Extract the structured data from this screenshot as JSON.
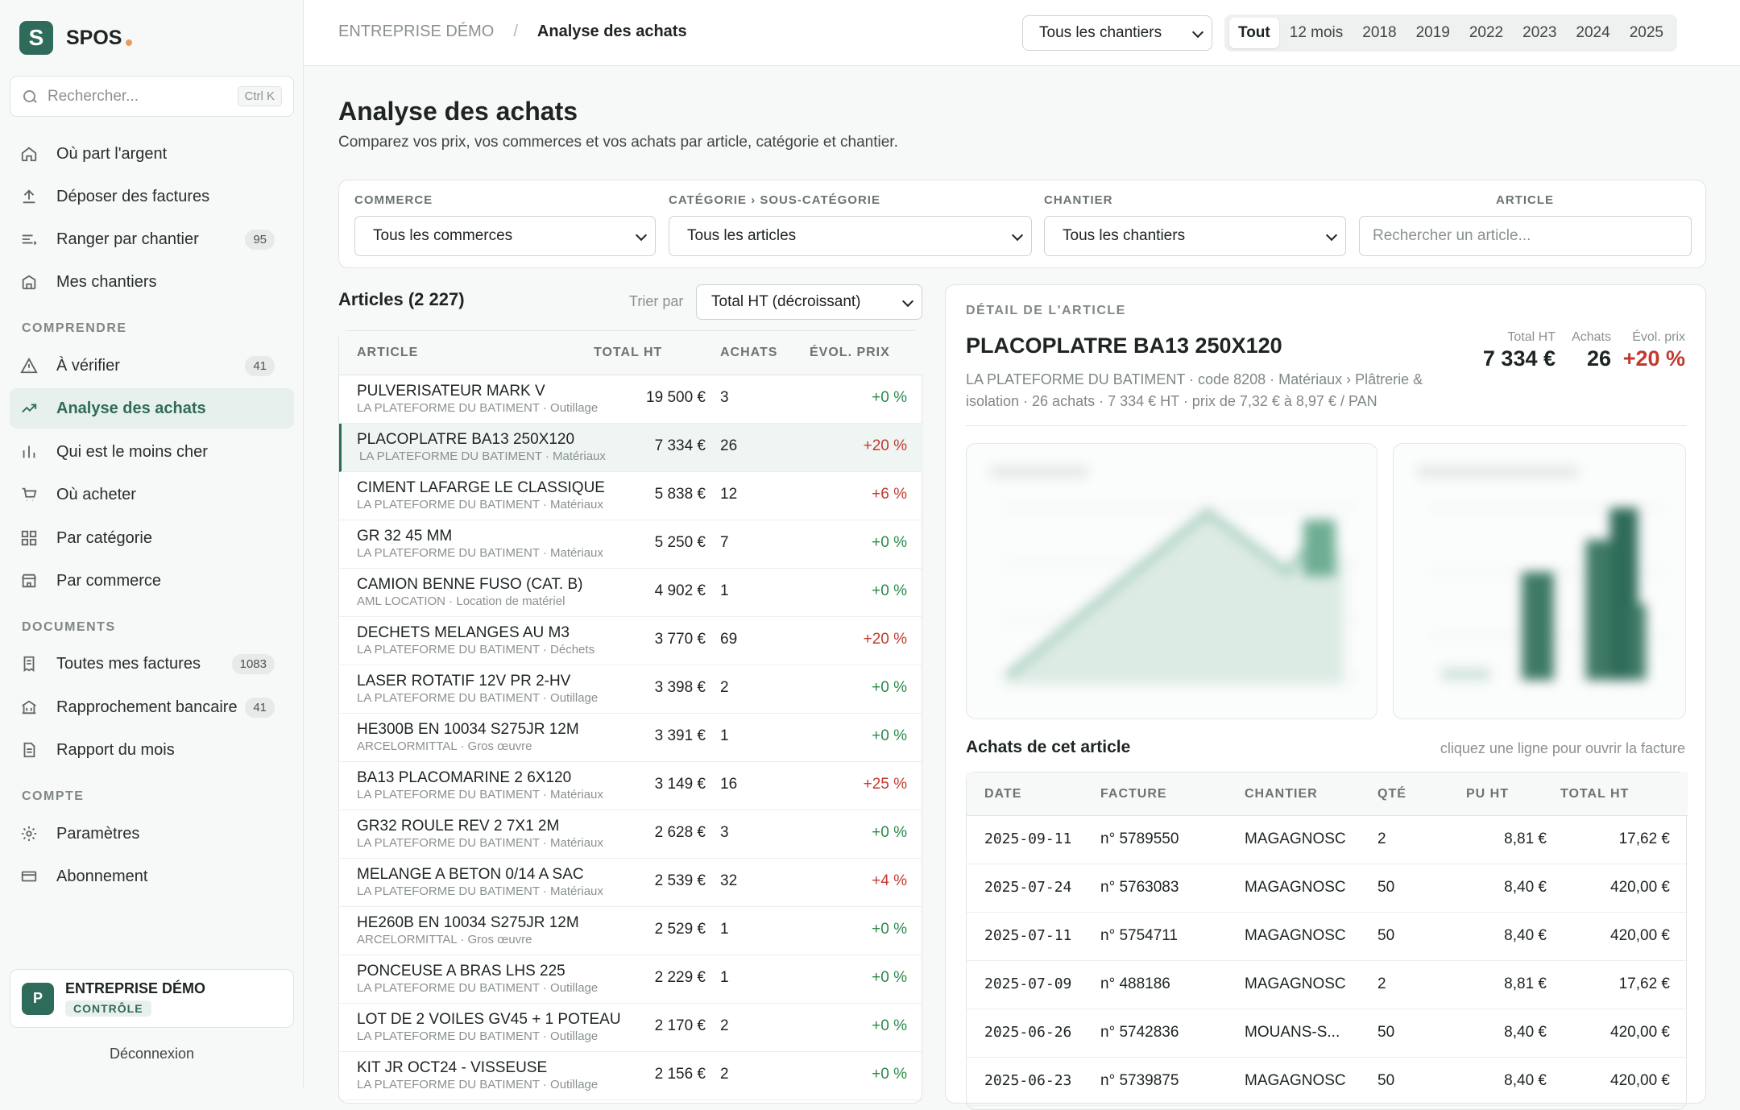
{
  "brand": {
    "logo_letter": "S",
    "name": "SPOS"
  },
  "search": {
    "placeholder": "Rechercher...",
    "shortcut": "Ctrl K"
  },
  "nav": {
    "main": [
      {
        "label": "Où part l'argent",
        "icon": "home-icon"
      },
      {
        "label": "Déposer des factures",
        "icon": "upload-icon"
      },
      {
        "label": "Ranger par chantier",
        "icon": "list-icon",
        "badge": "95"
      },
      {
        "label": "Mes chantiers",
        "icon": "building-icon"
      }
    ],
    "section_comprendre": "COMPRENDRE",
    "comprendre": [
      {
        "label": "À vérifier",
        "icon": "warning-icon",
        "badge": "41"
      },
      {
        "label": "Analyse des achats",
        "icon": "trend-icon"
      },
      {
        "label": "Qui est le moins cher",
        "icon": "bar-chart-icon"
      },
      {
        "label": "Où acheter",
        "icon": "cart-icon"
      },
      {
        "label": "Par catégorie",
        "icon": "grid-icon"
      },
      {
        "label": "Par commerce",
        "icon": "store-icon"
      }
    ],
    "section_documents": "DOCUMENTS",
    "documents": [
      {
        "label": "Toutes mes factures",
        "icon": "receipt-icon",
        "badge": "1083"
      },
      {
        "label": "Rapprochement bancaire",
        "icon": "bank-icon",
        "badge": "41"
      },
      {
        "label": "Rapport du mois",
        "icon": "document-icon"
      }
    ],
    "section_compte": "COMPTE",
    "compte": [
      {
        "label": "Paramètres",
        "icon": "gear-icon"
      },
      {
        "label": "Abonnement",
        "icon": "card-icon"
      }
    ]
  },
  "company": {
    "avatar": "P",
    "name": "ENTREPRISE DÉMO",
    "role": "CONTRÔLE"
  },
  "logout": "Déconnexion",
  "topbar": {
    "breadcrumb_root": "ENTREPRISE DÉMO",
    "breadcrumb_sep": "/",
    "breadcrumb_current": "Analyse des achats",
    "site_select": "Tous les chantiers",
    "periods": [
      "Tout",
      "12 mois",
      "2018",
      "2019",
      "2022",
      "2023",
      "2024",
      "2025"
    ],
    "active_period": "Tout"
  },
  "page": {
    "title": "Analyse des achats",
    "subtitle": "Comparez vos prix, vos commerces et vos achats par article, catégorie et chantier."
  },
  "filters": {
    "commerce_label": "COMMERCE",
    "commerce_value": "Tous les commerces",
    "category_label": "CATÉGORIE › SOUS-CATÉGORIE",
    "category_value": "Tous les articles",
    "chantier_label": "CHANTIER",
    "chantier_value": "Tous les chantiers",
    "article_label": "ARTICLE",
    "article_placeholder": "Rechercher un article..."
  },
  "list": {
    "title": "Articles (2 227)",
    "sort_label": "Trier par",
    "sort_value": "Total HT (décroissant)",
    "headers": [
      "ARTICLE",
      "TOTAL HT",
      "ACHATS",
      "ÉVOL. PRIX"
    ],
    "rows": [
      {
        "name": "PULVERISATEUR MARK V",
        "sub": "LA PLATEFORME DU BATIMENT · Outillage",
        "total": "19 500 €",
        "count": "3",
        "evol": "+0 %",
        "trend": "neutral"
      },
      {
        "name": "PLACOPLATRE BA13 250X120",
        "sub": "LA PLATEFORME DU BATIMENT · Matériaux",
        "total": "7 334 €",
        "count": "26",
        "evol": "+20 %",
        "trend": "up",
        "selected": true
      },
      {
        "name": "CIMENT LAFARGE LE CLASSIQUE",
        "sub": "LA PLATEFORME DU BATIMENT · Matériaux",
        "total": "5 838 €",
        "count": "12",
        "evol": "+6 %",
        "trend": "up"
      },
      {
        "name": "GR 32 45 MM",
        "sub": "LA PLATEFORME DU BATIMENT · Matériaux",
        "total": "5 250 €",
        "count": "7",
        "evol": "+0 %",
        "trend": "neutral"
      },
      {
        "name": "CAMION BENNE FUSO (CAT. B)",
        "sub": "AML LOCATION · Location de matériel",
        "total": "4 902 €",
        "count": "1",
        "evol": "+0 %",
        "trend": "neutral"
      },
      {
        "name": "DECHETS MELANGES AU M3",
        "sub": "LA PLATEFORME DU BATIMENT · Déchets",
        "total": "3 770 €",
        "count": "69",
        "evol": "+20 %",
        "trend": "up"
      },
      {
        "name": "LASER ROTATIF 12V PR 2-HV",
        "sub": "LA PLATEFORME DU BATIMENT · Outillage",
        "total": "3 398 €",
        "count": "2",
        "evol": "+0 %",
        "trend": "neutral"
      },
      {
        "name": "HE300B EN 10034 S275JR 12M",
        "sub": "ARCELORMITTAL · Gros œuvre",
        "total": "3 391 €",
        "count": "1",
        "evol": "+0 %",
        "trend": "neutral"
      },
      {
        "name": "BA13 PLACOMARINE 2 6X120",
        "sub": "LA PLATEFORME DU BATIMENT · Matériaux",
        "total": "3 149 €",
        "count": "16",
        "evol": "+25 %",
        "trend": "up"
      },
      {
        "name": "GR32 ROULE REV 2 7X1 2M",
        "sub": "LA PLATEFORME DU BATIMENT · Matériaux",
        "total": "2 628 €",
        "count": "3",
        "evol": "+0 %",
        "trend": "neutral"
      },
      {
        "name": "MELANGE A BETON 0/14 A SAC",
        "sub": "LA PLATEFORME DU BATIMENT · Matériaux",
        "total": "2 539 €",
        "count": "32",
        "evol": "+4 %",
        "trend": "up"
      },
      {
        "name": "HE260B EN 10034 S275JR 12M",
        "sub": "ARCELORMITTAL · Gros œuvre",
        "total": "2 529 €",
        "count": "1",
        "evol": "+0 %",
        "trend": "neutral"
      },
      {
        "name": "PONCEUSE A BRAS LHS 225",
        "sub": "LA PLATEFORME DU BATIMENT · Outillage",
        "total": "2 229 €",
        "count": "1",
        "evol": "+0 %",
        "trend": "neutral"
      },
      {
        "name": "LOT DE 2 VOILES GV45 + 1 POTEAU",
        "sub": "LA PLATEFORME DU BATIMENT · Outillage",
        "total": "2 170 €",
        "count": "2",
        "evol": "+0 %",
        "trend": "neutral"
      },
      {
        "name": "KIT JR OCT24 - VISSEUSE",
        "sub": "LA PLATEFORME DU BATIMENT · Outillage",
        "total": "2 156 €",
        "count": "2",
        "evol": "+0 %",
        "trend": "neutral"
      }
    ]
  },
  "detail": {
    "label": "DÉTAIL DE L'ARTICLE",
    "title": "PLACOPLATRE BA13 250X120",
    "description": "LA PLATEFORME DU BATIMENT · code 8208 · Matériaux › Plâtrerie & isolation · 26 achats · 7 334 € HT · prix de 7,32 € à 8,97 € / PAN",
    "stats": [
      {
        "label": "Total HT",
        "value": "7 334 €"
      },
      {
        "label": "Achats",
        "value": "26"
      },
      {
        "label": "Évol. prix",
        "value": "+20 %"
      }
    ],
    "purchases_title": "Achats de cet article",
    "purchases_hint": "cliquez une ligne pour ouvrir la facture",
    "purchase_headers": [
      "DATE",
      "FACTURE",
      "CHANTIER",
      "QTÉ",
      "PU HT",
      "TOTAL HT"
    ],
    "purchases": [
      {
        "date": "2025-09-11",
        "invoice": "n° 5789550",
        "site": "MAGAGNOSC",
        "qty": "2",
        "unit": "8,81 €",
        "total": "17,62 €"
      },
      {
        "date": "2025-07-24",
        "invoice": "n° 5763083",
        "site": "MAGAGNOSC",
        "qty": "50",
        "unit": "8,40 €",
        "total": "420,00 €"
      },
      {
        "date": "2025-07-11",
        "invoice": "n° 5754711",
        "site": "MAGAGNOSC",
        "qty": "50",
        "unit": "8,40 €",
        "total": "420,00 €"
      },
      {
        "date": "2025-07-09",
        "invoice": "n° 488186",
        "site": "MAGAGNOSC",
        "qty": "2",
        "unit": "8,81 €",
        "total": "17,62 €"
      },
      {
        "date": "2025-06-26",
        "invoice": "n° 5742836",
        "site": "MOUANS-S...",
        "qty": "50",
        "unit": "8,40 €",
        "total": "420,00 €"
      },
      {
        "date": "2025-06-23",
        "invoice": "n° 5739875",
        "site": "MAGAGNOSC",
        "qty": "50",
        "unit": "8,40 €",
        "total": "420,00 €"
      }
    ]
  },
  "colors": {
    "accent": "#2f6b5a",
    "negative": "#c23a2f",
    "positive": "#2a8a4a",
    "brand_dot": "#e99b58"
  }
}
